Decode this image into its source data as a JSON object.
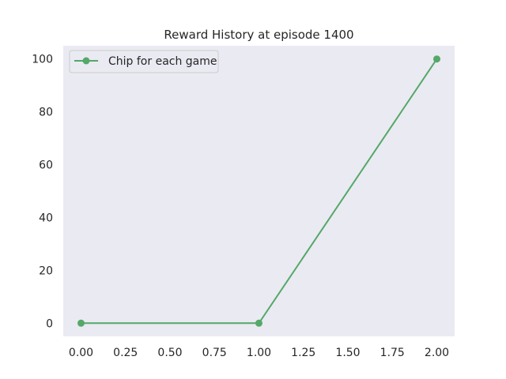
{
  "chart_data": {
    "type": "line",
    "title": "Reward History at episode 1400",
    "xlabel": "",
    "ylabel": "",
    "xlim": [
      -0.1,
      2.1
    ],
    "ylim": [
      -5,
      105
    ],
    "x_ticks": [
      0,
      0.25,
      0.5,
      0.75,
      1,
      1.25,
      1.5,
      1.75,
      2
    ],
    "x_tick_labels": [
      "0.00",
      "0.25",
      "0.50",
      "0.75",
      "1.00",
      "1.25",
      "1.50",
      "1.75",
      "2.00"
    ],
    "y_ticks": [
      0,
      20,
      40,
      60,
      80,
      100
    ],
    "y_tick_labels": [
      "0",
      "20",
      "40",
      "60",
      "80",
      "100"
    ],
    "grid": false,
    "legend_position": "top-left",
    "background_color": "#eaeaf2",
    "series": [
      {
        "name": "Chip for each game",
        "color": "#55a868",
        "marker": "circle",
        "x": [
          0,
          1,
          2
        ],
        "y": [
          0,
          0,
          100
        ]
      }
    ]
  }
}
